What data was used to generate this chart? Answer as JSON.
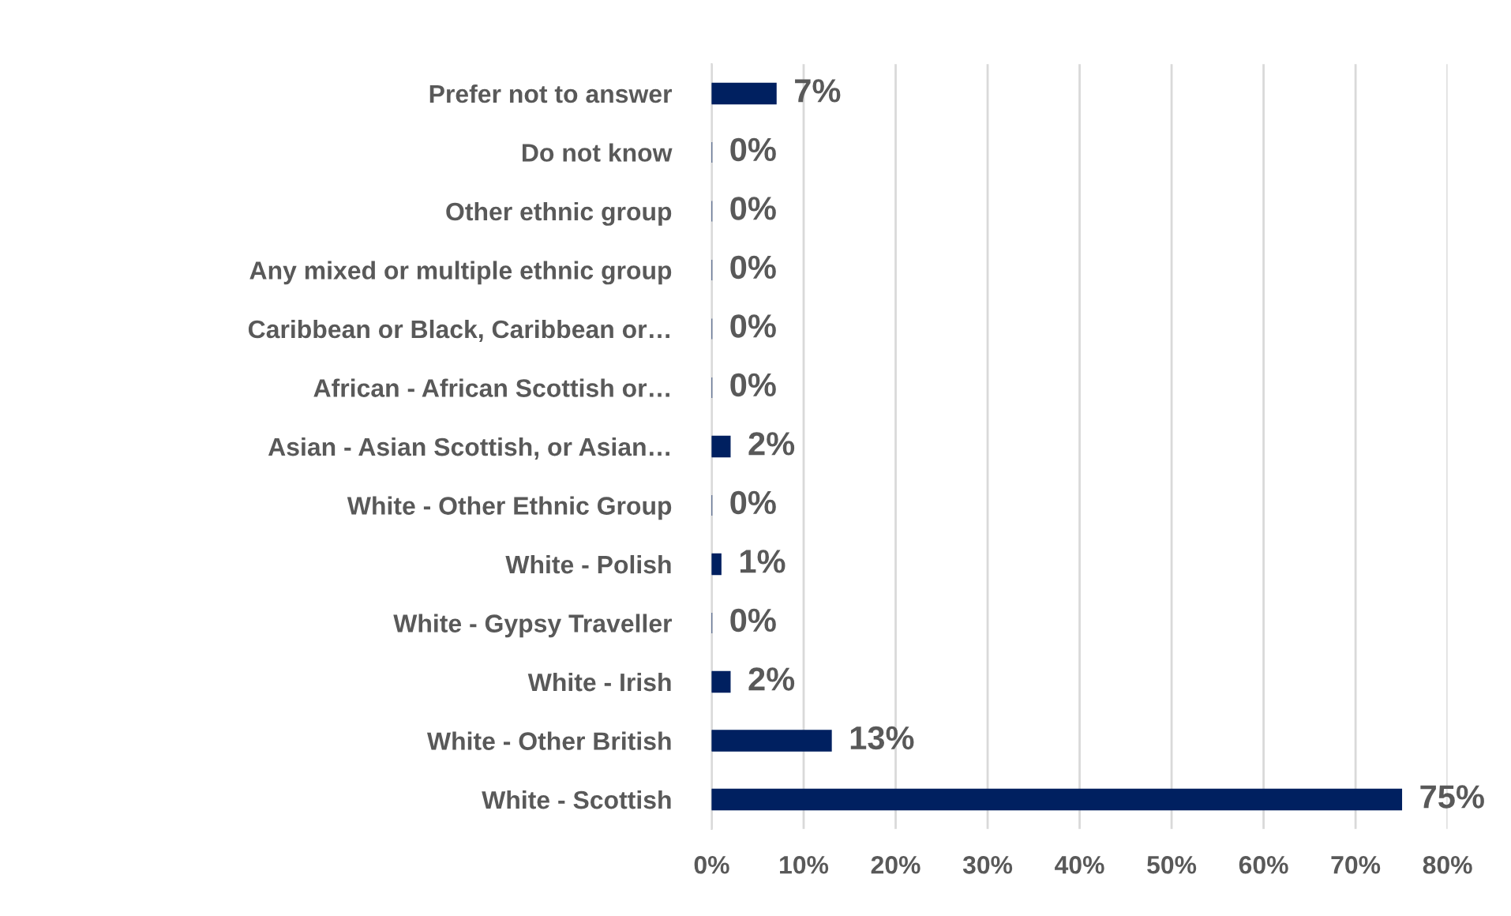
{
  "chart_data": {
    "type": "bar",
    "orientation": "horizontal",
    "categories": [
      "Prefer not to answer",
      "Do not know",
      "Other ethnic group",
      "Any mixed or multiple ethnic group",
      "Caribbean or Black, Caribbean or…",
      "African - African Scottish or…",
      "Asian - Asian Scottish, or Asian…",
      "White - Other Ethnic Group",
      "White - Polish",
      "White - Gypsy Traveller",
      "White - Irish",
      "White - Other British",
      "White - Scottish"
    ],
    "values": [
      7,
      0,
      0,
      0,
      0,
      0,
      2,
      0,
      1,
      0,
      2,
      13,
      75
    ],
    "value_labels": [
      "7%",
      "0%",
      "0%",
      "0%",
      "0%",
      "0%",
      "2%",
      "0%",
      "1%",
      "0%",
      "2%",
      "13%",
      "75%"
    ],
    "color": "#002060",
    "xlim": [
      0,
      80
    ],
    "xticks": [
      {
        "value": 0,
        "label": "0%"
      },
      {
        "value": 10,
        "label": "10%"
      },
      {
        "value": 20,
        "label": "20%"
      },
      {
        "value": 30,
        "label": "30%"
      },
      {
        "value": 40,
        "label": "40%"
      },
      {
        "value": 50,
        "label": "50%"
      },
      {
        "value": 60,
        "label": "60%"
      },
      {
        "value": 70,
        "label": "70%"
      },
      {
        "value": 80,
        "label": "80%"
      }
    ],
    "grid": "x",
    "legend": false
  }
}
